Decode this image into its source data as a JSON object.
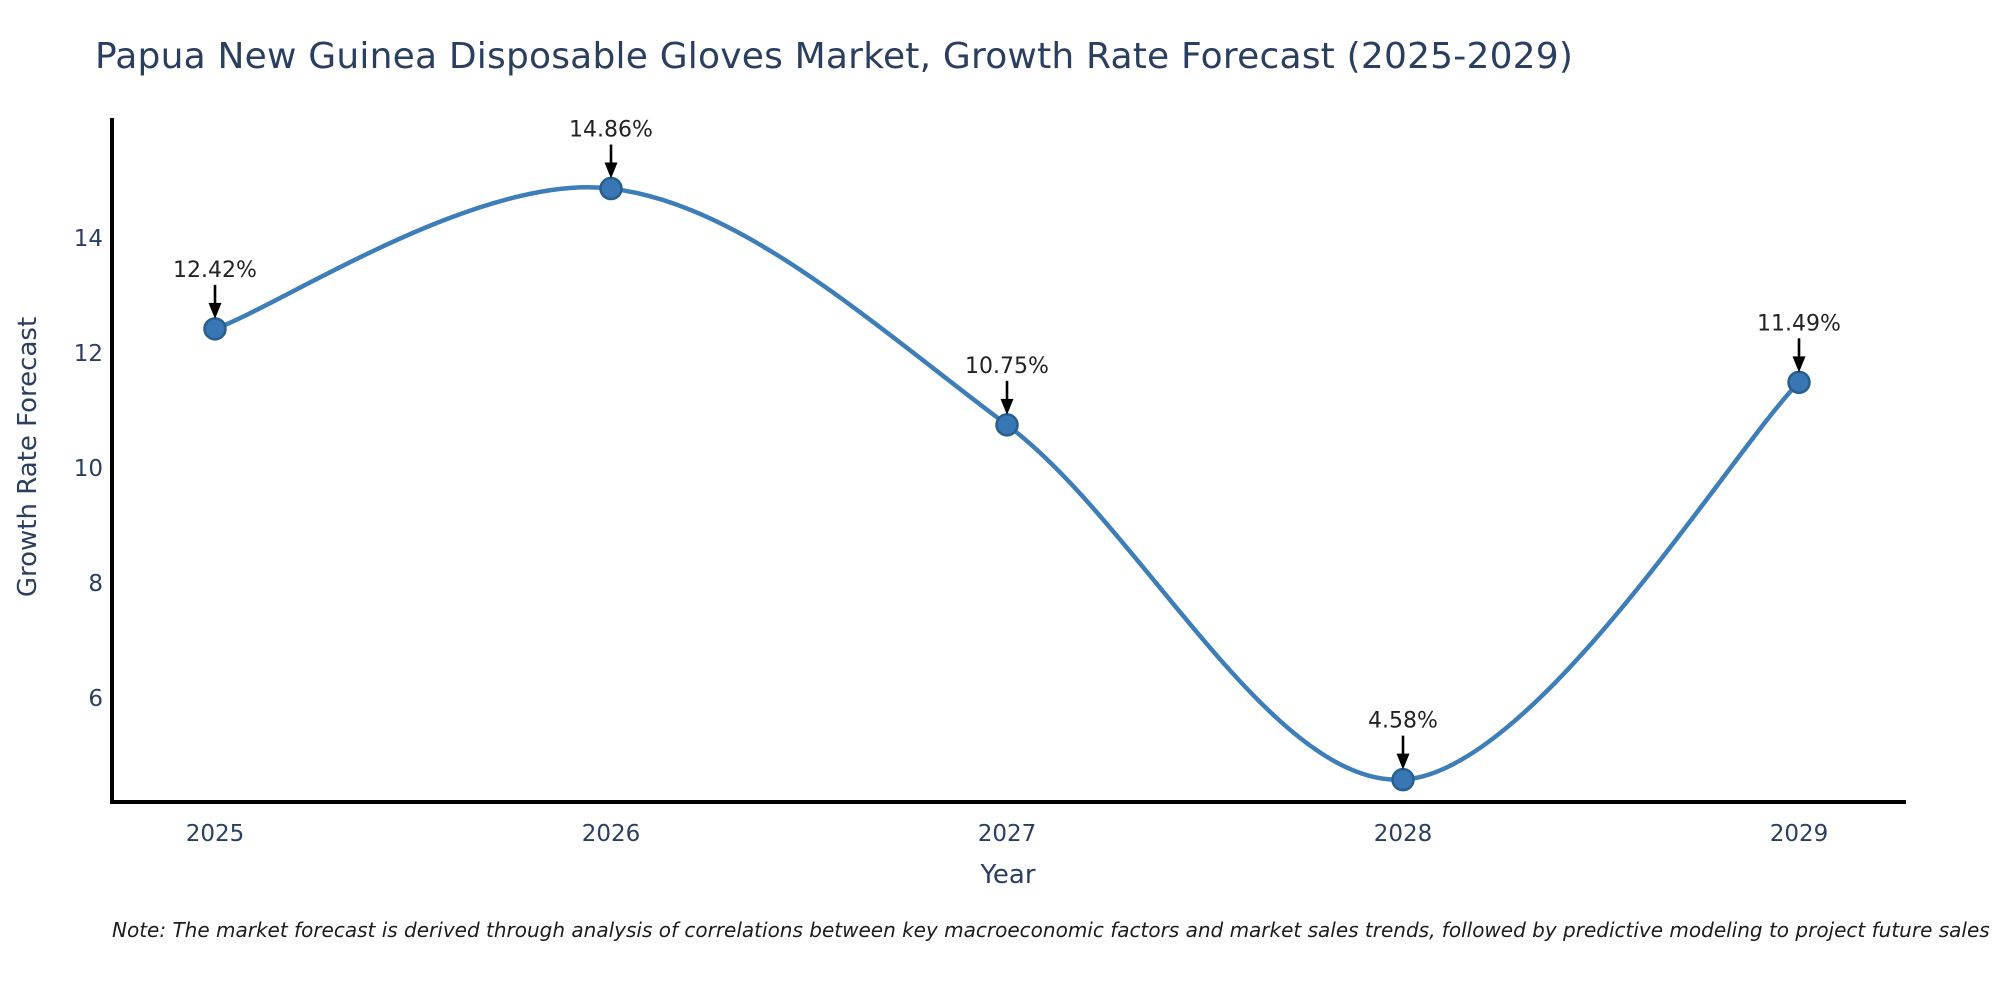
{
  "chart_data": {
    "type": "line",
    "line_shape": "spline",
    "title": "Papua New Guinea Disposable Gloves Market, Growth Rate Forecast (2025-2029)",
    "xlabel": "Year",
    "ylabel": "Growth Rate Forecast",
    "categories": [
      "2025",
      "2026",
      "2027",
      "2028",
      "2029"
    ],
    "values": [
      12.42,
      14.86,
      10.75,
      4.58,
      11.49
    ],
    "point_labels": [
      "12.42%",
      "14.86%",
      "10.75%",
      "4.58%",
      "11.49%"
    ],
    "yticks": [
      6,
      8,
      10,
      12,
      14
    ],
    "ylim": [
      4.2,
      16.1
    ],
    "grid": false,
    "legend_position": "none",
    "markers": true,
    "annotations_arrows": true,
    "colors": {
      "line": "#3E7EB8",
      "marker_fill": "#3876B4",
      "marker_edge": "#27608F",
      "axis_line": "#000000",
      "axis_text": "#2a3f5f",
      "annotation_text": "#222222",
      "arrow": "#000000",
      "note_text": "#1c1c1c",
      "background": "#ffffff"
    }
  },
  "note": "Note: The market forecast is derived through analysis of correlations between key macroeconomic factors and market sales trends, followed by predictive modeling to project future sales"
}
